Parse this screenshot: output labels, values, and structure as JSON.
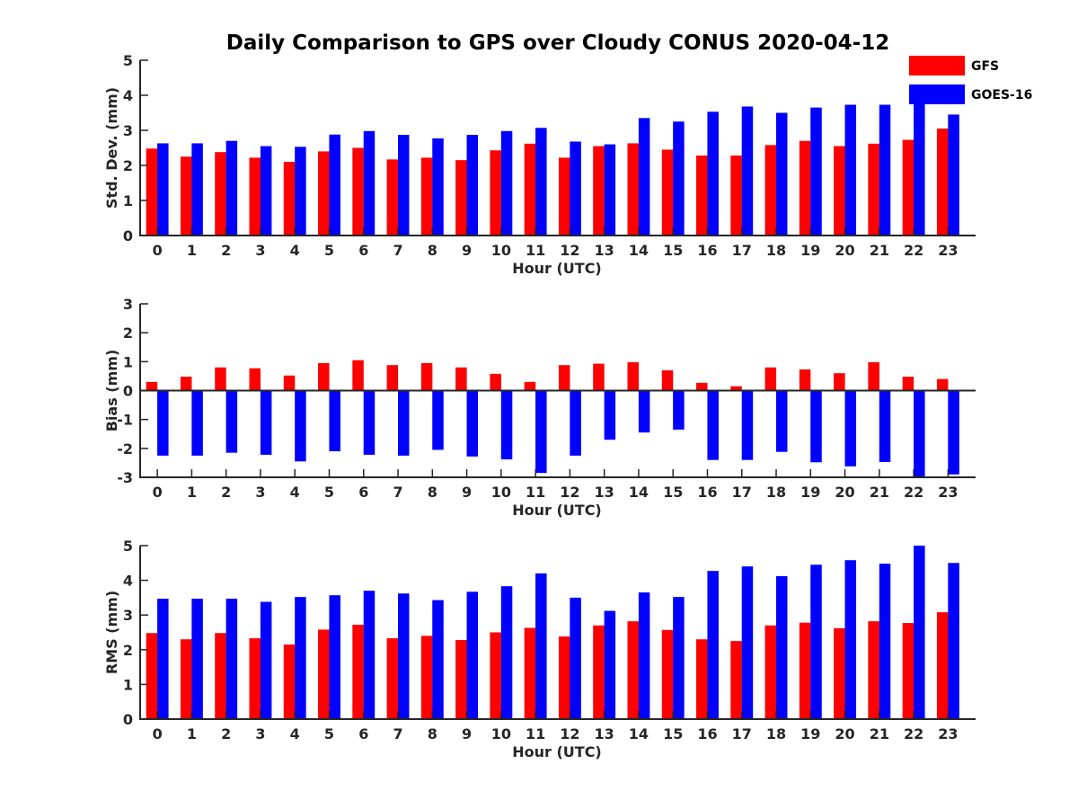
{
  "title": "Daily Comparison to GPS over Cloudy CONUS 2020-04-12",
  "colors": {
    "GFS": "#ff0000",
    "GOES-16": "#0000ff",
    "axis": "#262626"
  },
  "legend": {
    "placement": "top-right",
    "items": [
      "GFS",
      "GOES-16"
    ]
  },
  "chart_data": [
    {
      "type": "bar",
      "xlabel": "Hour (UTC)",
      "ylabel": "Std. Dev. (mm)",
      "ylim": [
        0,
        5
      ],
      "yticks": [
        0,
        1,
        2,
        3,
        4,
        5
      ],
      "categories": [
        "0",
        "1",
        "2",
        "3",
        "4",
        "5",
        "6",
        "7",
        "8",
        "9",
        "10",
        "11",
        "12",
        "13",
        "14",
        "15",
        "16",
        "17",
        "18",
        "19",
        "20",
        "21",
        "22",
        "23"
      ],
      "series": [
        {
          "name": "GFS",
          "values": [
            2.48,
            2.25,
            2.38,
            2.22,
            2.1,
            2.4,
            2.5,
            2.17,
            2.22,
            2.15,
            2.43,
            2.62,
            2.22,
            2.55,
            2.63,
            2.45,
            2.28,
            2.28,
            2.58,
            2.7,
            2.55,
            2.62,
            2.73,
            3.05
          ]
        },
        {
          "name": "GOES-16",
          "values": [
            2.63,
            2.63,
            2.7,
            2.55,
            2.53,
            2.88,
            2.98,
            2.87,
            2.77,
            2.87,
            2.98,
            3.07,
            2.68,
            2.6,
            3.35,
            3.25,
            3.53,
            3.68,
            3.5,
            3.65,
            3.73,
            3.73,
            3.77,
            3.45
          ]
        }
      ]
    },
    {
      "type": "bar",
      "xlabel": "Hour (UTC)",
      "ylabel": "Bias (mm)",
      "ylim": [
        -3,
        3
      ],
      "yticks": [
        -3,
        -2,
        -1,
        0,
        1,
        2,
        3
      ],
      "categories": [
        "0",
        "1",
        "2",
        "3",
        "4",
        "5",
        "6",
        "7",
        "8",
        "9",
        "10",
        "11",
        "12",
        "13",
        "14",
        "15",
        "16",
        "17",
        "18",
        "19",
        "20",
        "21",
        "22",
        "23"
      ],
      "series": [
        {
          "name": "GFS",
          "values": [
            0.3,
            0.48,
            0.8,
            0.77,
            0.52,
            0.95,
            1.05,
            0.88,
            0.95,
            0.8,
            0.58,
            0.3,
            0.88,
            0.93,
            0.98,
            0.7,
            0.27,
            0.15,
            0.8,
            0.73,
            0.6,
            0.98,
            0.48,
            0.4
          ]
        },
        {
          "name": "GOES-16",
          "values": [
            -2.25,
            -2.25,
            -2.15,
            -2.22,
            -2.45,
            -2.1,
            -2.22,
            -2.25,
            -2.05,
            -2.28,
            -2.38,
            -2.85,
            -2.25,
            -1.7,
            -1.45,
            -1.35,
            -2.4,
            -2.4,
            -2.12,
            -2.48,
            -2.62,
            -2.47,
            -3.0,
            -2.9
          ]
        }
      ]
    },
    {
      "type": "bar",
      "xlabel": "Hour (UTC)",
      "ylabel": "RMS (mm)",
      "ylim": [
        0,
        5
      ],
      "yticks": [
        0,
        1,
        2,
        3,
        4,
        5
      ],
      "categories": [
        "0",
        "1",
        "2",
        "3",
        "4",
        "5",
        "6",
        "7",
        "8",
        "9",
        "10",
        "11",
        "12",
        "13",
        "14",
        "15",
        "16",
        "17",
        "18",
        "19",
        "20",
        "21",
        "22",
        "23"
      ],
      "series": [
        {
          "name": "GFS",
          "values": [
            2.48,
            2.3,
            2.48,
            2.33,
            2.15,
            2.58,
            2.72,
            2.33,
            2.4,
            2.28,
            2.5,
            2.63,
            2.38,
            2.7,
            2.82,
            2.57,
            2.3,
            2.25,
            2.7,
            2.78,
            2.62,
            2.82,
            2.77,
            3.08
          ]
        },
        {
          "name": "GOES-16",
          "values": [
            3.47,
            3.47,
            3.47,
            3.38,
            3.52,
            3.57,
            3.7,
            3.62,
            3.43,
            3.67,
            3.83,
            4.2,
            3.5,
            3.12,
            3.65,
            3.52,
            4.27,
            4.4,
            4.12,
            4.45,
            4.58,
            4.48,
            5.0,
            4.5
          ]
        }
      ]
    }
  ]
}
